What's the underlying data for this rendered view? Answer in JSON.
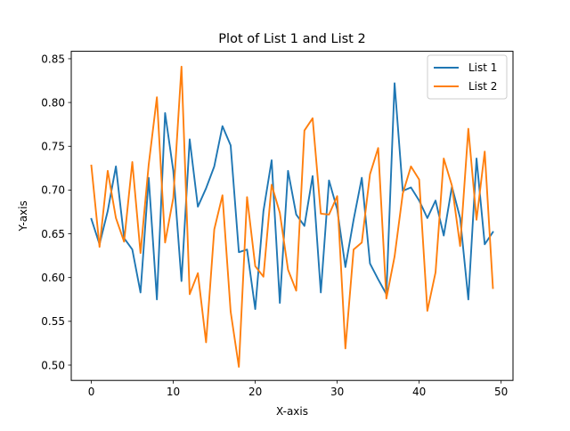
{
  "chart_data": {
    "type": "line",
    "title": "Plot of List 1 and List 2",
    "xlabel": "X-axis",
    "ylabel": "Y-axis",
    "xlim": [
      -2.45,
      51.45
    ],
    "ylim": [
      0.4825,
      0.8585
    ],
    "xticks": [
      0,
      10,
      20,
      30,
      40,
      50
    ],
    "xtick_labels": [
      "0",
      "10",
      "20",
      "30",
      "40",
      "50"
    ],
    "yticks": [
      0.5,
      0.55,
      0.6,
      0.65,
      0.7,
      0.75,
      0.8,
      0.85
    ],
    "ytick_labels": [
      "0.50",
      "0.55",
      "0.60",
      "0.65",
      "0.70",
      "0.75",
      "0.80",
      "0.85"
    ],
    "grid": false,
    "legend_position": "top-right",
    "x": [
      0,
      1,
      2,
      3,
      4,
      5,
      6,
      7,
      8,
      9,
      10,
      11,
      12,
      13,
      14,
      15,
      16,
      17,
      18,
      19,
      20,
      21,
      22,
      23,
      24,
      25,
      26,
      27,
      28,
      29,
      30,
      31,
      32,
      33,
      34,
      35,
      36,
      37,
      38,
      39,
      40,
      41,
      42,
      43,
      44,
      45,
      46,
      47,
      48,
      49
    ],
    "series": [
      {
        "name": "List 1",
        "color": "#1f77b4",
        "values": [
          0.667,
          0.638,
          0.676,
          0.727,
          0.645,
          0.632,
          0.583,
          0.714,
          0.575,
          0.788,
          0.722,
          0.596,
          0.758,
          0.681,
          0.702,
          0.727,
          0.773,
          0.751,
          0.629,
          0.632,
          0.564,
          0.676,
          0.734,
          0.571,
          0.722,
          0.672,
          0.659,
          0.716,
          0.583,
          0.711,
          0.678,
          0.612,
          0.666,
          0.714,
          0.616,
          0.598,
          0.581,
          0.822,
          0.699,
          0.703,
          0.688,
          0.668,
          0.688,
          0.648,
          0.704,
          0.668,
          0.575,
          0.736,
          0.638,
          0.652
        ]
      },
      {
        "name": "List 2",
        "color": "#ff7f0e",
        "values": [
          0.728,
          0.635,
          0.722,
          0.668,
          0.641,
          0.732,
          0.628,
          0.729,
          0.806,
          0.64,
          0.691,
          0.841,
          0.581,
          0.605,
          0.526,
          0.655,
          0.694,
          0.561,
          0.498,
          0.692,
          0.613,
          0.601,
          0.706,
          0.674,
          0.609,
          0.585,
          0.768,
          0.782,
          0.673,
          0.672,
          0.693,
          0.519,
          0.632,
          0.64,
          0.718,
          0.748,
          0.576,
          0.624,
          0.696,
          0.727,
          0.712,
          0.562,
          0.606,
          0.736,
          0.705,
          0.636,
          0.77,
          0.666,
          0.744,
          0.588
        ]
      }
    ]
  }
}
